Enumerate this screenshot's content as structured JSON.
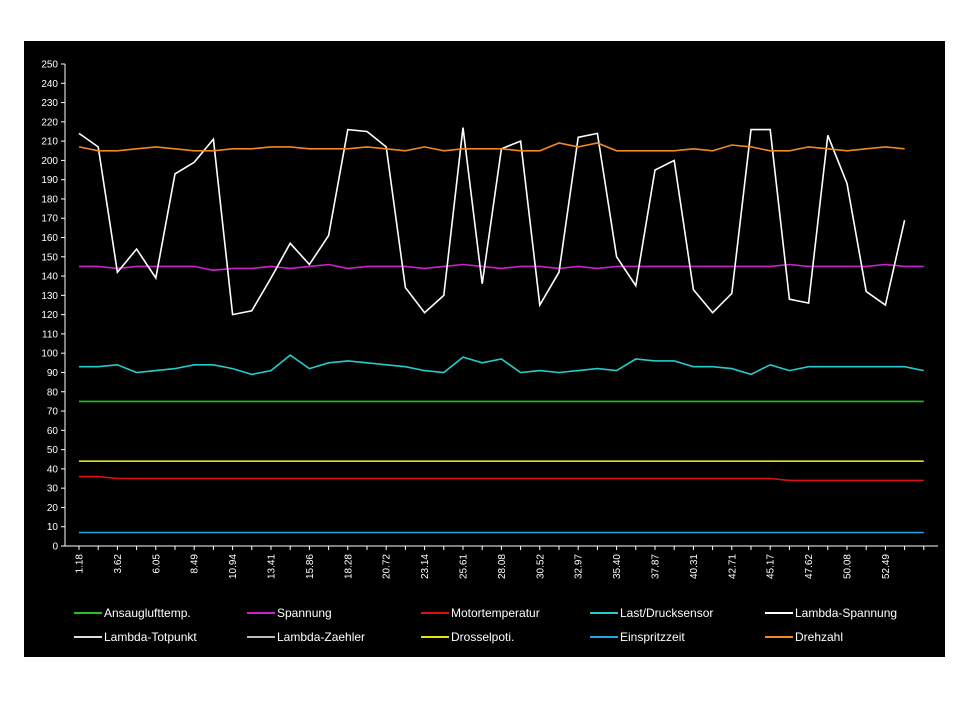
{
  "chart_data": {
    "type": "line",
    "title": "",
    "xlabel": "",
    "ylabel": "",
    "ylim": [
      0,
      250
    ],
    "ytick_step": 10,
    "grid": false,
    "legend_placement": "bottom",
    "x_tick_labels": [
      "1.18",
      "3.62",
      "6.05",
      "8.49",
      "10.94",
      "13.41",
      "15.86",
      "18.28",
      "20.72",
      "23.14",
      "25.61",
      "28.08",
      "30.52",
      "32.97",
      "35.40",
      "37.87",
      "40.31",
      "42.71",
      "45.17",
      "47.62",
      "50.08",
      "52.49"
    ],
    "series": [
      {
        "name": "Ansauglufttemp.",
        "color": "#22c022",
        "values": [
          75,
          75,
          75,
          75,
          75,
          75,
          75,
          75,
          75,
          75,
          75,
          75,
          75,
          75,
          75,
          75,
          75,
          75,
          75,
          75,
          75,
          75,
          75,
          75,
          75,
          75,
          75,
          75,
          75,
          75,
          75,
          75,
          75,
          75,
          75,
          75,
          75,
          75,
          75,
          75,
          75,
          75,
          75,
          75,
          75
        ]
      },
      {
        "name": "Spannung",
        "color": "#cc22cc",
        "values": [
          145,
          145,
          144,
          145,
          145,
          145,
          145,
          143,
          144,
          144,
          145,
          144,
          145,
          146,
          144,
          145,
          145,
          145,
          144,
          145,
          146,
          145,
          144,
          145,
          145,
          144,
          145,
          144,
          145,
          145,
          145,
          145,
          145,
          145,
          145,
          145,
          145,
          146,
          145,
          145,
          145,
          145,
          146,
          145,
          145
        ]
      },
      {
        "name": "Motortemperatur",
        "color": "#dd1111",
        "values": [
          36,
          36,
          35,
          35,
          35,
          35,
          35,
          35,
          35,
          35,
          35,
          35,
          35,
          35,
          35,
          35,
          35,
          35,
          35,
          35,
          35,
          35,
          35,
          35,
          35,
          35,
          35,
          35,
          35,
          35,
          35,
          35,
          35,
          35,
          35,
          35,
          35,
          34,
          34,
          34,
          34,
          34,
          34,
          34,
          34
        ]
      },
      {
        "name": "Last/Drucksensor",
        "color": "#22cccc",
        "values": [
          93,
          93,
          94,
          90,
          91,
          92,
          94,
          94,
          92,
          89,
          91,
          99,
          92,
          95,
          96,
          95,
          94,
          93,
          91,
          90,
          98,
          95,
          97,
          90,
          91,
          90,
          91,
          92,
          91,
          97,
          96,
          96,
          93,
          93,
          92,
          89,
          94,
          91,
          93,
          93,
          93,
          93,
          93,
          93,
          91
        ]
      },
      {
        "name": "Lambda-Spannung",
        "color": "#ffffff",
        "values": [
          214,
          207,
          142,
          154,
          139,
          193,
          199,
          211,
          120,
          122,
          139,
          157,
          146,
          161,
          216,
          215,
          207,
          134,
          121,
          130,
          217,
          136,
          206,
          210,
          125,
          142,
          212,
          214,
          150,
          135,
          195,
          200,
          133,
          121,
          131,
          216,
          216,
          128,
          126,
          213,
          188,
          132,
          125,
          169
        ]
      },
      {
        "name": "Lambda-Totpunkt",
        "color": "#dddddd",
        "values": []
      },
      {
        "name": "Lambda-Zaehler",
        "color": "#bbbbbb",
        "values": []
      },
      {
        "name": "Drosselpoti.",
        "color": "#e6e600",
        "values": [
          44,
          44,
          44,
          44,
          44,
          44,
          44,
          44,
          44,
          44,
          44,
          44,
          44,
          44,
          44,
          44,
          44,
          44,
          44,
          44,
          44,
          44,
          44,
          44,
          44,
          44,
          44,
          44,
          44,
          44,
          44,
          44,
          44,
          44,
          44,
          44,
          44,
          44,
          44,
          44,
          44,
          44,
          44,
          44,
          44
        ]
      },
      {
        "name": "Einspritzzeit",
        "color": "#22a8e0",
        "values": [
          7,
          7,
          7,
          7,
          7,
          7,
          7,
          7,
          7,
          7,
          7,
          7,
          7,
          7,
          7,
          7,
          7,
          7,
          7,
          7,
          7,
          7,
          7,
          7,
          7,
          7,
          7,
          7,
          7,
          7,
          7,
          7,
          7,
          7,
          7,
          7,
          7,
          7,
          7,
          7,
          7,
          7,
          7,
          7,
          7
        ]
      },
      {
        "name": "Drehzahl",
        "color": "#f08a20",
        "values": [
          207,
          205,
          205,
          206,
          207,
          206,
          205,
          205,
          206,
          206,
          207,
          207,
          206,
          206,
          206,
          207,
          206,
          205,
          207,
          205,
          206,
          206,
          206,
          205,
          205,
          209,
          207,
          209,
          205,
          205,
          205,
          205,
          206,
          205,
          208,
          207,
          205,
          205,
          207,
          206,
          205,
          206,
          207,
          206
        ]
      }
    ]
  }
}
